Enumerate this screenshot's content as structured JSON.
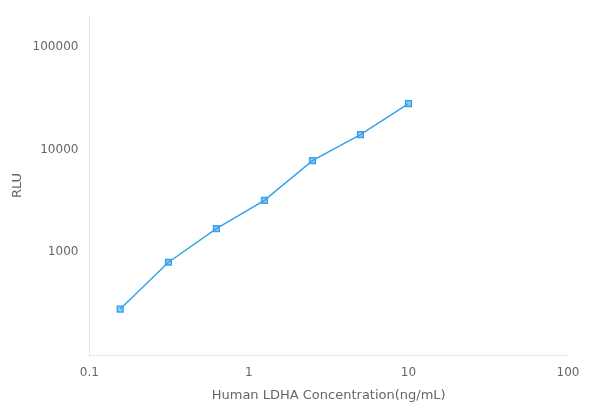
{
  "chart_data": {
    "type": "line",
    "x": [
      0.156,
      0.313,
      0.625,
      1.25,
      2.5,
      5.0,
      10.0
    ],
    "values": [
      280,
      800,
      1700,
      3200,
      7800,
      14000,
      28000
    ],
    "xlabel": "Human LDHA Concentration(ng/mL)",
    "ylabel": "RLU",
    "log": true,
    "xlim": [
      0.1,
      100
    ],
    "ylim": [
      100,
      200000
    ],
    "xticks": [
      0.1,
      1,
      10,
      100
    ],
    "yticks": [
      1000,
      10000,
      100000
    ],
    "marker": "square",
    "grid": false
  }
}
